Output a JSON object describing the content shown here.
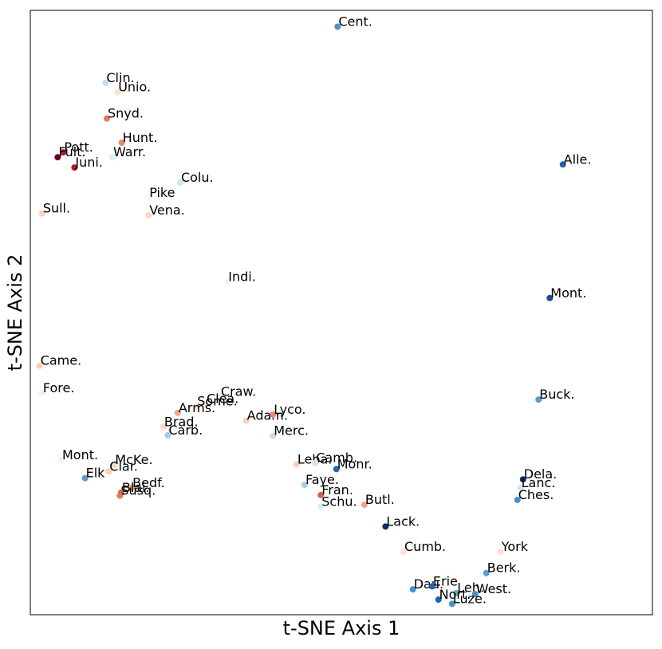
{
  "chart_data": {
    "type": "scatter",
    "x_label": "t-SNE Axis 1",
    "y_label": "t-SNE Axis 2",
    "xlim": [
      0,
      100
    ],
    "ylim": [
      0,
      100
    ],
    "point_labels": [
      "Cent.",
      "Clin.",
      "Unio.",
      "Snyd.",
      "Hunt.",
      "Pott.",
      "Fult.",
      "Warr.",
      "Juni.",
      "Colu.",
      "Pike",
      "Vena.",
      "Sull.",
      "Alle.",
      "Indi.",
      "Mont.",
      "Came.",
      "Fore.",
      "Buck.",
      "Craw.",
      "Clea.",
      "Some.",
      "Arms.",
      "Adam.",
      "Lyco.",
      "Brad.",
      "Carb.",
      "Merc.",
      "Mont.",
      "McKe.",
      "Clar.",
      "Elk",
      "Bedf.",
      "Blai.",
      "Susq.",
      "Leba.",
      "Camb.",
      "Monr.",
      "Faye.",
      "Fran.",
      "Schu.",
      "Butl.",
      "Lack.",
      "Dela.",
      "Lanc.",
      "Ches.",
      "Cumb.",
      "York",
      "Berk.",
      "Dau.",
      "Erie",
      "Leh.",
      "West.",
      "Nort.",
      "Luze."
    ],
    "x": [
      49.4,
      12.1,
      14.0,
      12.3,
      14.7,
      5.3,
      4.4,
      13.2,
      7.1,
      24.1,
      19.0,
      19.0,
      1.9,
      85.6,
      31.7,
      83.5,
      1.5,
      1.9,
      81.7,
      30.5,
      28.2,
      26.7,
      23.7,
      34.7,
      39.0,
      21.4,
      22.1,
      39.0,
      5.0,
      13.5,
      12.6,
      8.8,
      16.3,
      14.6,
      14.4,
      42.8,
      45.8,
      49.2,
      44.1,
      46.7,
      46.7,
      53.7,
      57.1,
      79.2,
      78.8,
      78.3,
      60.0,
      75.6,
      73.3,
      61.5,
      64.6,
      68.5,
      71.5,
      65.6,
      67.8
    ],
    "values": [
      97.3,
      88.0,
      86.5,
      82.1,
      78.1,
      76.5,
      75.7,
      75.7,
      74.0,
      71.5,
      69.0,
      66.1,
      66.4,
      74.5,
      55.1,
      52.4,
      41.2,
      36.7,
      35.6,
      36.1,
      34.9,
      34.5,
      33.4,
      32.1,
      33.1,
      31.1,
      29.7,
      29.6,
      25.6,
      24.8,
      23.7,
      22.6,
      21.0,
      20.2,
      19.7,
      24.9,
      25.1,
      24.1,
      21.5,
      19.8,
      17.9,
      18.2,
      14.6,
      22.4,
      21.0,
      19.0,
      10.4,
      10.4,
      6.9,
      4.2,
      4.7,
      3.6,
      3.4,
      2.5,
      1.8
    ],
    "colors": [
      "#4a90c4",
      "#c6dbef",
      "#fbe3d4",
      "#e0785e",
      "#e8896c",
      "#b2182b",
      "#67001f",
      "#deebf7",
      "#b2182b",
      "#d1e5f0",
      "#f7f7f7",
      "#fbd9c5",
      "#fbd0b9",
      "#2166ac",
      "#eef3f8",
      "#1a4e8c",
      "#fbcfb5",
      "#fdeee4",
      "#5b9bc9",
      "#fdeee4",
      "#f7f7f7",
      "#fbd9c5",
      "#f4a582",
      "#fbd0b9",
      "#e8896c",
      "#fbd9c5",
      "#a6cee3",
      "#c6dbef",
      "#fdeee4",
      "#fddbc7",
      "#fbd0b9",
      "#5b9bc9",
      "#f4a582",
      "#d6604d",
      "#e0785e",
      "#fbd0b9",
      "#d1e5f0",
      "#2166ac",
      "#a6cee3",
      "#d6604d",
      "#e0ecf4",
      "#f4a582",
      "#08306b",
      "#08306b",
      "#d1e5f0",
      "#4a90c4",
      "#fde0d2",
      "#fde0d2",
      "#5b9bc9",
      "#4a90c4",
      "#2166ac",
      "#6baed6",
      "#4a90c4",
      "#2166ac",
      "#4a90c4"
    ]
  }
}
